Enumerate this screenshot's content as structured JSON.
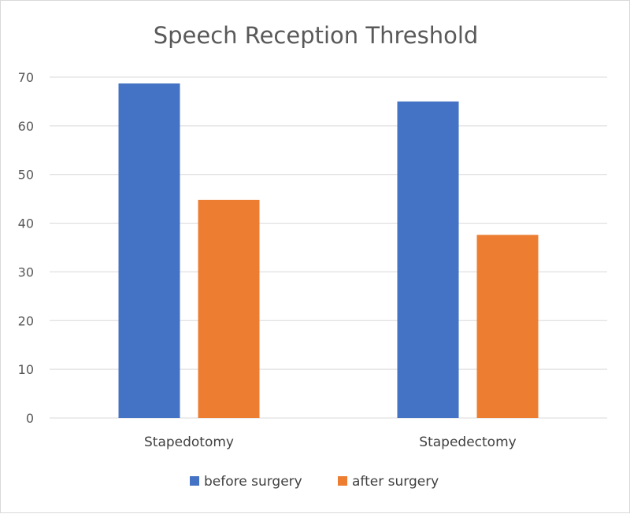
{
  "chart_data": {
    "type": "bar",
    "title": "Speech Reception Threshold",
    "xlabel": "",
    "ylabel": "",
    "categories": [
      "Stapedotomy",
      "Stapedectomy"
    ],
    "series": [
      {
        "name": "before surgery",
        "color": "#4472C4",
        "values": [
          68.7,
          65.0
        ]
      },
      {
        "name": "after surgery",
        "color": "#ED7D31",
        "values": [
          44.8,
          37.6
        ]
      }
    ],
    "ylim": [
      0,
      70
    ],
    "yticks": [
      "0",
      "10",
      "20",
      "30",
      "40",
      "50",
      "60",
      "70"
    ],
    "grid": true,
    "legend_position": "bottom"
  }
}
